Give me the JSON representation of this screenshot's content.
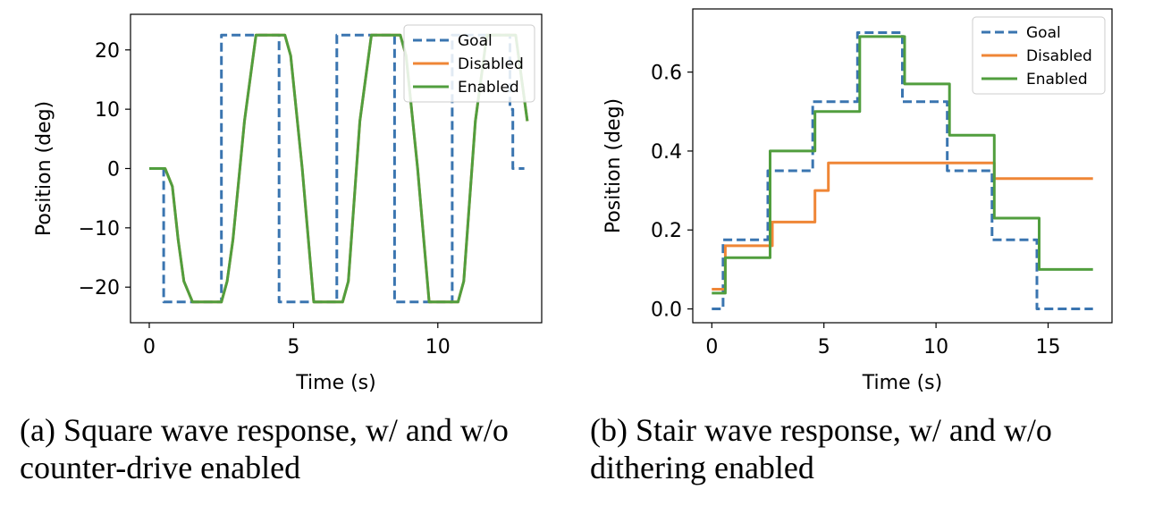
{
  "chart_data": [
    {
      "id": "a",
      "type": "line",
      "xlabel": "Time (s)",
      "ylabel": "Position (deg)",
      "xlim": [
        -0.65,
        13.6
      ],
      "ylim": [
        -26,
        26
      ],
      "xticks": [
        0,
        5,
        10
      ],
      "yticks": [
        -20,
        -10,
        0,
        10,
        20
      ],
      "xtick_labels": [
        "0",
        "5",
        "10"
      ],
      "ytick_labels": [
        "−20",
        "−10",
        "0",
        "10",
        "20"
      ],
      "grid": false,
      "legend_position": "top-right",
      "series": [
        {
          "name": "Goal",
          "color": "#3a75b0",
          "style": "dashed",
          "x": [
            0,
            0.5,
            0.5,
            2.5,
            2.5,
            4.5,
            4.5,
            6.5,
            6.5,
            8.5,
            8.5,
            10.5,
            10.5,
            12.5,
            12.5,
            12.6,
            12.6,
            13.0
          ],
          "y": [
            0,
            0,
            -22.5,
            -22.5,
            22.5,
            22.5,
            -22.5,
            -22.5,
            22.5,
            22.5,
            -22.5,
            -22.5,
            22.5,
            22.5,
            10,
            10,
            0,
            0
          ]
        },
        {
          "name": "Disabled",
          "color": "#ef8636",
          "style": "solid",
          "x": [
            0,
            0.55,
            0.8,
            1.0,
            1.2,
            1.5,
            2.5,
            2.7,
            2.9,
            3.3,
            3.7,
            4.7,
            4.9,
            5.3,
            5.7,
            6.7,
            6.9,
            7.3,
            7.7,
            8.7,
            8.9,
            9.3,
            9.7,
            10.7,
            10.9,
            11.3,
            11.7,
            12.7,
            13.1
          ],
          "y": [
            0,
            0,
            -3,
            -12,
            -19,
            -22.5,
            -22.5,
            -19,
            -12,
            8,
            22.5,
            22.5,
            19,
            0,
            -22.5,
            -22.5,
            -19,
            8,
            22.5,
            22.5,
            19,
            0,
            -22.5,
            -22.5,
            -19,
            8,
            22.5,
            22.5,
            8
          ]
        },
        {
          "name": "Enabled",
          "color": "#519e3e",
          "style": "solid",
          "x": [
            0,
            0.55,
            0.8,
            1.0,
            1.2,
            1.5,
            2.5,
            2.7,
            2.9,
            3.3,
            3.7,
            4.7,
            4.9,
            5.3,
            5.7,
            6.7,
            6.9,
            7.3,
            7.7,
            8.7,
            8.9,
            9.3,
            9.7,
            10.7,
            10.9,
            11.3,
            11.7,
            12.7,
            13.1
          ],
          "y": [
            0,
            0,
            -3,
            -12,
            -19,
            -22.5,
            -22.5,
            -19,
            -12,
            8,
            22.5,
            22.5,
            19,
            0,
            -22.5,
            -22.5,
            -19,
            8,
            22.5,
            22.5,
            19,
            0,
            -22.5,
            -22.5,
            -19,
            8,
            22.5,
            22.5,
            8
          ]
        }
      ]
    },
    {
      "id": "b",
      "type": "line",
      "xlabel": "Time (s)",
      "ylabel": "Position (deg)",
      "xlim": [
        -0.85,
        17.85
      ],
      "ylim": [
        -0.035,
        0.76
      ],
      "xticks": [
        0,
        5,
        10,
        15
      ],
      "yticks": [
        0.0,
        0.2,
        0.4,
        0.6
      ],
      "xtick_labels": [
        "0",
        "5",
        "10",
        "15"
      ],
      "ytick_labels": [
        "0.0",
        "0.2",
        "0.4",
        "0.6"
      ],
      "grid": false,
      "legend_position": "top-right",
      "series": [
        {
          "name": "Goal",
          "color": "#3a75b0",
          "style": "dashed",
          "x": [
            0,
            0.5,
            0.5,
            2.5,
            2.5,
            4.5,
            4.5,
            6.5,
            6.5,
            8.5,
            8.5,
            10.5,
            10.5,
            12.5,
            12.5,
            14.5,
            14.5,
            17.0
          ],
          "y": [
            0,
            0,
            0.175,
            0.175,
            0.35,
            0.35,
            0.525,
            0.525,
            0.7,
            0.7,
            0.525,
            0.525,
            0.35,
            0.35,
            0.175,
            0.175,
            0,
            0
          ]
        },
        {
          "name": "Disabled",
          "color": "#ef8636",
          "style": "solid",
          "x": [
            0,
            0.6,
            0.6,
            2.7,
            2.7,
            4.6,
            4.6,
            5.2,
            5.2,
            12.6,
            12.6,
            17.0
          ],
          "y": [
            0.05,
            0.05,
            0.16,
            0.16,
            0.22,
            0.22,
            0.3,
            0.3,
            0.37,
            0.37,
            0.33,
            0.33
          ]
        },
        {
          "name": "Enabled",
          "color": "#519e3e",
          "style": "solid",
          "x": [
            0,
            0.6,
            0.6,
            2.6,
            2.6,
            4.6,
            4.6,
            6.6,
            6.6,
            8.6,
            8.6,
            10.6,
            10.6,
            12.6,
            12.6,
            14.6,
            14.6,
            17.0
          ],
          "y": [
            0.04,
            0.04,
            0.13,
            0.13,
            0.4,
            0.4,
            0.5,
            0.5,
            0.69,
            0.69,
            0.57,
            0.57,
            0.44,
            0.44,
            0.23,
            0.23,
            0.1,
            0.1
          ]
        }
      ]
    }
  ],
  "captions": {
    "a": [
      "(a) Square wave response, w/ and w/o",
      "counter-drive enabled"
    ],
    "b": [
      "(b) Stair wave response, w/ and w/o",
      "dithering enabled"
    ]
  }
}
